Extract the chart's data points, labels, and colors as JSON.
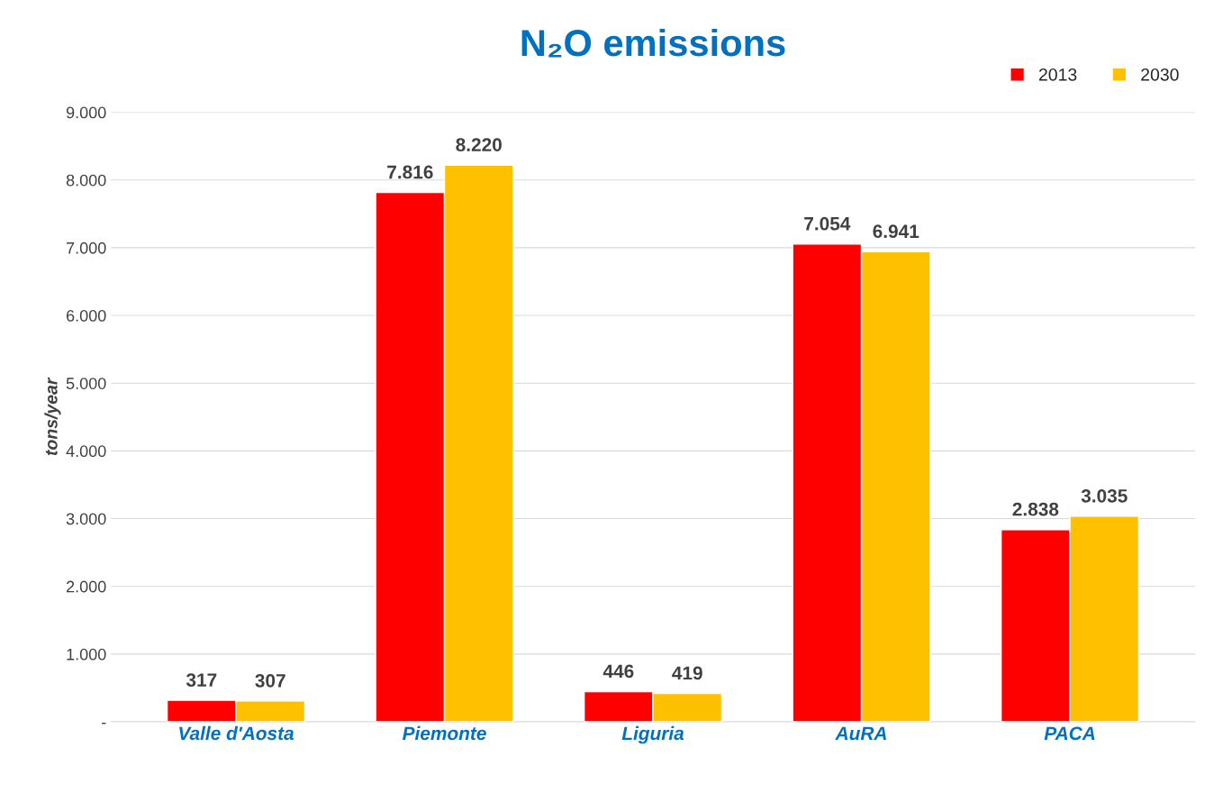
{
  "chart_data": {
    "type": "bar",
    "title": "N₂O emissions",
    "ylabel": "tons/year",
    "categories": [
      "Valle d'Aosta",
      "Piemonte",
      "Liguria",
      "AuRA",
      "PACA"
    ],
    "series": [
      {
        "name": "2013",
        "color": "#ff0000",
        "values": [
          317,
          7816,
          446,
          7054,
          2838
        ],
        "value_labels": [
          "317",
          "7.816",
          "446",
          "7.054",
          "2.838"
        ]
      },
      {
        "name": "2030",
        "color": "#ffc000",
        "values": [
          307,
          8220,
          419,
          6941,
          3035
        ],
        "value_labels": [
          "307",
          "8.220",
          "419",
          "6.941",
          "3.035"
        ]
      }
    ],
    "ylim": [
      0,
      9000
    ],
    "yticks": [
      {
        "value": 0,
        "label": "-"
      },
      {
        "value": 1000,
        "label": "1.000"
      },
      {
        "value": 2000,
        "label": "2.000"
      },
      {
        "value": 3000,
        "label": "3.000"
      },
      {
        "value": 4000,
        "label": "4.000"
      },
      {
        "value": 5000,
        "label": "5.000"
      },
      {
        "value": 6000,
        "label": "6.000"
      },
      {
        "value": 7000,
        "label": "7.000"
      },
      {
        "value": 8000,
        "label": "8.000"
      },
      {
        "value": 9000,
        "label": "9.000"
      }
    ],
    "grid": "y",
    "legend": "top right"
  }
}
